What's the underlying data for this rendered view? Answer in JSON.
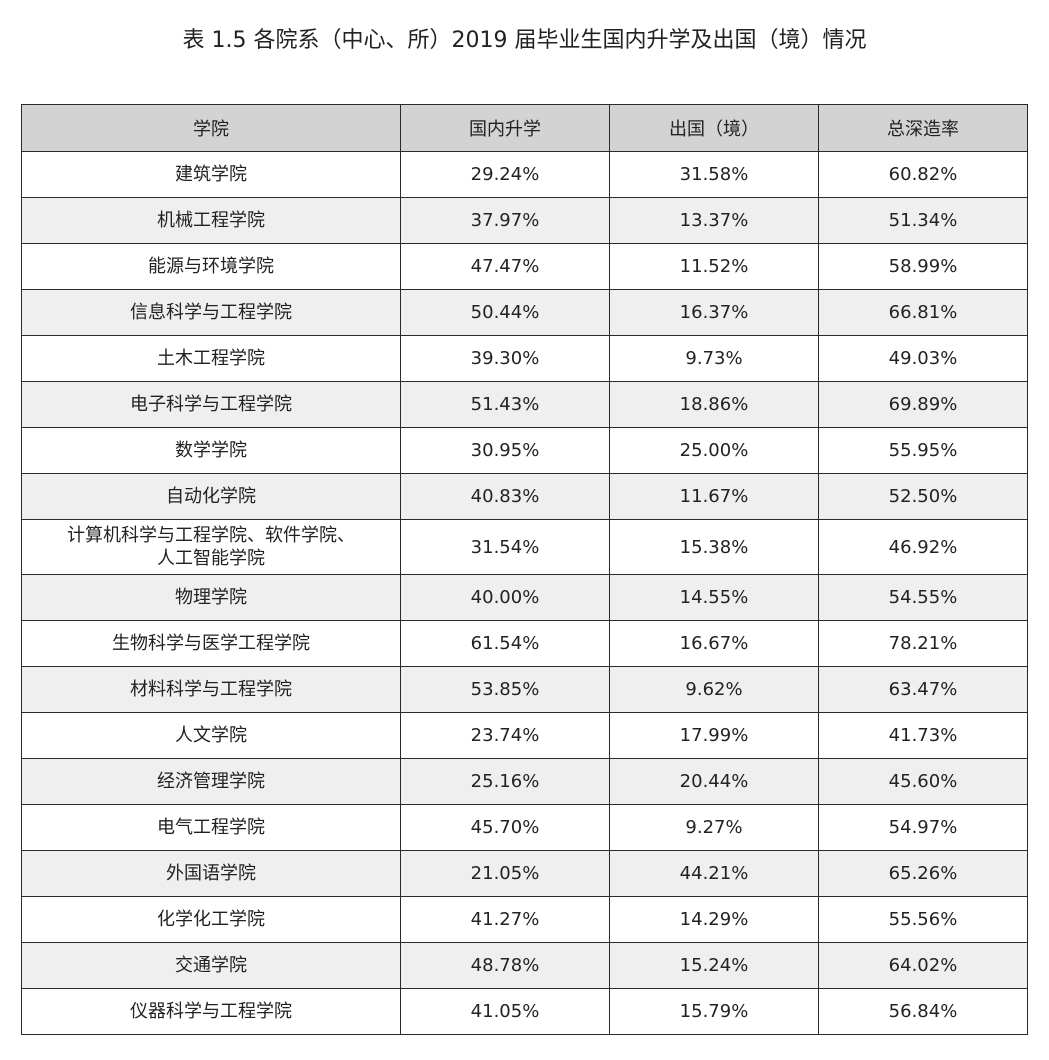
{
  "title": "表 1.5  各院系（中心、所）2019 届毕业生国内升学及出国（境）情况",
  "table": {
    "headers": [
      "学院",
      "国内升学",
      "出国（境）",
      "总深造率"
    ],
    "rows": [
      {
        "college": "建筑学院",
        "domestic": "29.24%",
        "abroad": "31.58%",
        "total": "60.82%"
      },
      {
        "college": "机械工程学院",
        "domestic": "37.97%",
        "abroad": "13.37%",
        "total": "51.34%"
      },
      {
        "college": "能源与环境学院",
        "domestic": "47.47%",
        "abroad": "11.52%",
        "total": "58.99%"
      },
      {
        "college": "信息科学与工程学院",
        "domestic": "50.44%",
        "abroad": "16.37%",
        "total": "66.81%"
      },
      {
        "college": "土木工程学院",
        "domestic": "39.30%",
        "abroad": "9.73%",
        "total": "49.03%"
      },
      {
        "college": "电子科学与工程学院",
        "domestic": "51.43%",
        "abroad": "18.86%",
        "total": "69.89%"
      },
      {
        "college": "数学学院",
        "domestic": "30.95%",
        "abroad": "25.00%",
        "total": "55.95%"
      },
      {
        "college": "自动化学院",
        "domestic": "40.83%",
        "abroad": "11.67%",
        "total": "52.50%"
      },
      {
        "college": "计算机科学与工程学院、软件学院、",
        "college_line2": "人工智能学院",
        "domestic": "31.54%",
        "abroad": "15.38%",
        "total": "46.92%"
      },
      {
        "college": "物理学院",
        "domestic": "40.00%",
        "abroad": "14.55%",
        "total": "54.55%"
      },
      {
        "college": "生物科学与医学工程学院",
        "domestic": "61.54%",
        "abroad": "16.67%",
        "total": "78.21%"
      },
      {
        "college": "材料科学与工程学院",
        "domestic": "53.85%",
        "abroad": "9.62%",
        "total": "63.47%"
      },
      {
        "college": "人文学院",
        "domestic": "23.74%",
        "abroad": "17.99%",
        "total": "41.73%"
      },
      {
        "college": "经济管理学院",
        "domestic": "25.16%",
        "abroad": "20.44%",
        "total": "45.60%"
      },
      {
        "college": "电气工程学院",
        "domestic": "45.70%",
        "abroad": "9.27%",
        "total": "54.97%"
      },
      {
        "college": "外国语学院",
        "domestic": "21.05%",
        "abroad": "44.21%",
        "total": "65.26%"
      },
      {
        "college": "化学化工学院",
        "domestic": "41.27%",
        "abroad": "14.29%",
        "total": "55.56%"
      },
      {
        "college": "交通学院",
        "domestic": "48.78%",
        "abroad": "15.24%",
        "total": "64.02%"
      },
      {
        "college": "仪器科学与工程学院",
        "domestic": "41.05%",
        "abroad": "15.79%",
        "total": "56.84%"
      }
    ]
  },
  "colors": {
    "header_background": "#d3d3d3",
    "alternate_row_background": "#efefef",
    "border": "#2a2a2a",
    "text": "#222222"
  }
}
